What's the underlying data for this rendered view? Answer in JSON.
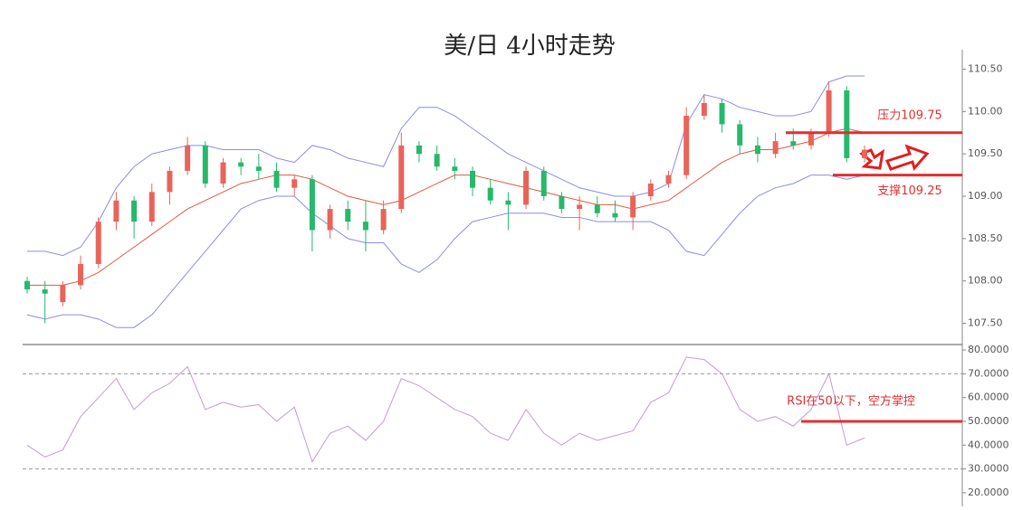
{
  "chart_data": [
    {
      "type": "candlestick",
      "title": "美/日 4小时走势",
      "ylim": [
        107.26,
        110.73
      ],
      "yticks": [
        {
          "value": 110.5,
          "label": "110.50"
        },
        {
          "value": 110,
          "label": "110.00"
        },
        {
          "value": 109.5,
          "label": "109.50"
        },
        {
          "value": 109,
          "label": "109.00"
        },
        {
          "value": 108.5,
          "label": "108.50"
        },
        {
          "value": 108,
          "label": "108.00"
        },
        {
          "value": 107.5,
          "label": "107.50"
        }
      ],
      "up_color": "#e8645a",
      "down_color": "#27b86b",
      "open": [
        108.0,
        107.9,
        107.75,
        107.95,
        108.2,
        108.7,
        108.95,
        108.7,
        109.05,
        109.3,
        109.6,
        109.15,
        109.4,
        109.35,
        109.3,
        109.1,
        109.2,
        108.6,
        108.85,
        108.7,
        108.6,
        108.85,
        109.6,
        109.5,
        109.35,
        109.3,
        109.1,
        108.95,
        108.9,
        109.3,
        109.0,
        108.85,
        108.9,
        108.8,
        108.75,
        109.0,
        109.15,
        109.25,
        109.95,
        110.1,
        109.85,
        109.6,
        109.5,
        109.65,
        109.6,
        109.75,
        110.25,
        109.45
      ],
      "high": [
        108.05,
        108.0,
        108.0,
        108.3,
        108.75,
        109.05,
        109.0,
        109.15,
        109.35,
        109.7,
        109.65,
        109.45,
        109.45,
        109.5,
        109.4,
        109.25,
        109.25,
        108.9,
        108.95,
        108.95,
        108.95,
        109.75,
        109.65,
        109.6,
        109.45,
        109.35,
        109.2,
        109.05,
        109.35,
        109.35,
        109.05,
        109.0,
        109.0,
        108.95,
        109.05,
        109.2,
        109.3,
        110.05,
        110.2,
        110.15,
        109.9,
        109.7,
        109.75,
        109.8,
        109.8,
        110.35,
        110.3,
        109.6
      ],
      "low": [
        107.85,
        107.5,
        107.7,
        107.9,
        108.15,
        108.6,
        108.5,
        108.65,
        108.9,
        109.25,
        109.1,
        109.1,
        109.25,
        109.2,
        109.05,
        109.0,
        108.35,
        108.5,
        108.6,
        108.35,
        108.55,
        108.8,
        109.4,
        109.3,
        109.2,
        109.0,
        108.9,
        108.6,
        108.85,
        108.95,
        108.8,
        108.6,
        108.75,
        108.7,
        108.6,
        108.95,
        109.1,
        109.2,
        109.9,
        109.75,
        109.5,
        109.4,
        109.45,
        109.55,
        109.55,
        109.7,
        109.4,
        109.4
      ],
      "close": [
        107.9,
        107.85,
        107.95,
        108.2,
        108.7,
        108.95,
        108.7,
        109.05,
        109.3,
        109.6,
        109.15,
        109.4,
        109.35,
        109.3,
        109.1,
        109.2,
        108.6,
        108.85,
        108.7,
        108.6,
        108.85,
        109.6,
        109.5,
        109.35,
        109.3,
        109.1,
        108.95,
        108.9,
        109.3,
        109.0,
        108.85,
        108.9,
        108.8,
        108.75,
        109.0,
        109.15,
        109.25,
        109.95,
        110.1,
        109.85,
        109.6,
        109.5,
        109.65,
        109.6,
        109.75,
        110.25,
        109.45,
        109.55
      ],
      "bands": [
        {
          "color": "#8c8ce6",
          "values": [
            108.35,
            108.35,
            108.3,
            108.4,
            108.7,
            109.1,
            109.35,
            109.5,
            109.55,
            109.6,
            109.6,
            109.55,
            109.55,
            109.55,
            109.45,
            109.4,
            109.6,
            109.55,
            109.45,
            109.4,
            109.35,
            109.8,
            110.05,
            110.05,
            109.95,
            109.8,
            109.65,
            109.5,
            109.4,
            109.3,
            109.2,
            109.1,
            109.05,
            109.0,
            109.0,
            109.05,
            109.15,
            109.85,
            110.2,
            110.15,
            110.05,
            110.0,
            109.95,
            109.95,
            110.0,
            110.35,
            110.42,
            110.42
          ]
        },
        {
          "color": "#e05a40",
          "values": [
            107.95,
            107.95,
            107.95,
            108.0,
            108.1,
            108.25,
            108.4,
            108.55,
            108.7,
            108.85,
            108.95,
            109.05,
            109.15,
            109.2,
            109.25,
            109.25,
            109.2,
            109.1,
            109.0,
            108.95,
            108.9,
            108.95,
            109.05,
            109.15,
            109.25,
            109.25,
            109.2,
            109.15,
            109.1,
            109.05,
            109.0,
            108.95,
            108.9,
            108.9,
            108.85,
            108.9,
            108.95,
            109.1,
            109.25,
            109.4,
            109.5,
            109.55,
            109.55,
            109.6,
            109.65,
            109.75,
            109.8,
            109.75
          ]
        },
        {
          "color": "#8c8ce6",
          "values": [
            107.6,
            107.55,
            107.6,
            107.6,
            107.55,
            107.45,
            107.45,
            107.6,
            107.85,
            108.1,
            108.35,
            108.6,
            108.85,
            108.95,
            109.0,
            109.0,
            108.8,
            108.65,
            108.5,
            108.45,
            108.45,
            108.2,
            108.1,
            108.25,
            108.5,
            108.7,
            108.75,
            108.8,
            108.8,
            108.8,
            108.75,
            108.75,
            108.7,
            108.7,
            108.7,
            108.7,
            108.6,
            108.35,
            108.3,
            108.55,
            108.8,
            109.0,
            109.1,
            109.15,
            109.25,
            109.25,
            109.2,
            109.25
          ]
        }
      ],
      "levels": [
        {
          "value": 109.75,
          "label": "压力109.75",
          "color": "#e03030"
        },
        {
          "value": 109.25,
          "label": "支撑109.25",
          "color": "#e03030"
        }
      ]
    },
    {
      "type": "line",
      "ylim": [
        17.3,
        82.3
      ],
      "yticks": [
        {
          "value": 80,
          "label": "80.0000"
        },
        {
          "value": 70,
          "label": "70.0000"
        },
        {
          "value": 60,
          "label": "60.0000"
        },
        {
          "value": 50,
          "label": "50.0000"
        },
        {
          "value": 40,
          "label": "40.0000"
        },
        {
          "value": 30,
          "label": "30.0000"
        },
        {
          "value": 20,
          "label": "20.0000"
        }
      ],
      "ref_lines": [
        70,
        30
      ],
      "series": [
        {
          "color": "#c79ad2",
          "values": [
            40,
            35,
            38,
            52,
            60,
            68,
            55,
            62,
            66,
            73,
            55,
            58,
            56,
            57,
            50,
            56,
            33,
            45,
            48,
            42,
            50,
            68,
            65,
            60,
            55,
            52,
            45,
            42,
            55,
            45,
            40,
            45,
            42,
            44,
            46,
            58,
            62,
            77,
            76,
            70,
            55,
            50,
            52,
            48,
            55,
            70,
            40,
            43
          ]
        }
      ],
      "levels": [
        {
          "value": 50,
          "label": "RSI在50以下，空方掌控",
          "color": "#e03030"
        }
      ]
    }
  ]
}
